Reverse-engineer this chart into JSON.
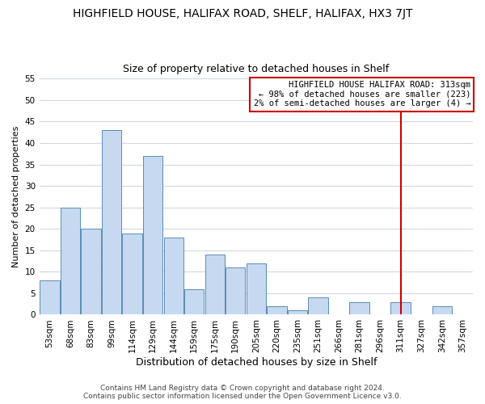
{
  "title": "HIGHFIELD HOUSE, HALIFAX ROAD, SHELF, HALIFAX, HX3 7JT",
  "subtitle": "Size of property relative to detached houses in Shelf",
  "xlabel": "Distribution of detached houses by size in Shelf",
  "ylabel": "Number of detached properties",
  "categories": [
    "53sqm",
    "68sqm",
    "83sqm",
    "99sqm",
    "114sqm",
    "129sqm",
    "144sqm",
    "159sqm",
    "175sqm",
    "190sqm",
    "205sqm",
    "220sqm",
    "235sqm",
    "251sqm",
    "266sqm",
    "281sqm",
    "296sqm",
    "311sqm",
    "327sqm",
    "342sqm",
    "357sqm"
  ],
  "values": [
    8,
    25,
    20,
    43,
    19,
    37,
    18,
    6,
    14,
    11,
    12,
    2,
    1,
    4,
    0,
    3,
    0,
    3,
    0,
    2,
    0
  ],
  "bar_color": "#c6d9f0",
  "bar_edge_color": "#5a8db5",
  "ylim": [
    0,
    55
  ],
  "yticks": [
    0,
    5,
    10,
    15,
    20,
    25,
    30,
    35,
    40,
    45,
    50,
    55
  ],
  "vline_index": 17,
  "vline_color": "#cc0000",
  "annotation_line0": "HIGHFIELD HOUSE HALIFAX ROAD: 313sqm",
  "annotation_line1": "← 98% of detached houses are smaller (223)",
  "annotation_line2": "2% of semi-detached houses are larger (4) →",
  "annotation_box_color": "#ffffff",
  "annotation_box_edge": "#cc0000",
  "footer_line1": "Contains HM Land Registry data © Crown copyright and database right 2024.",
  "footer_line2": "Contains public sector information licensed under the Open Government Licence v3.0.",
  "background_color": "#ffffff",
  "grid_color": "#d0d8e4",
  "title_fontsize": 10,
  "subtitle_fontsize": 9,
  "xlabel_fontsize": 9,
  "ylabel_fontsize": 8,
  "tick_fontsize": 7.5,
  "annotation_fontsize": 7.5,
  "footer_fontsize": 6.5
}
